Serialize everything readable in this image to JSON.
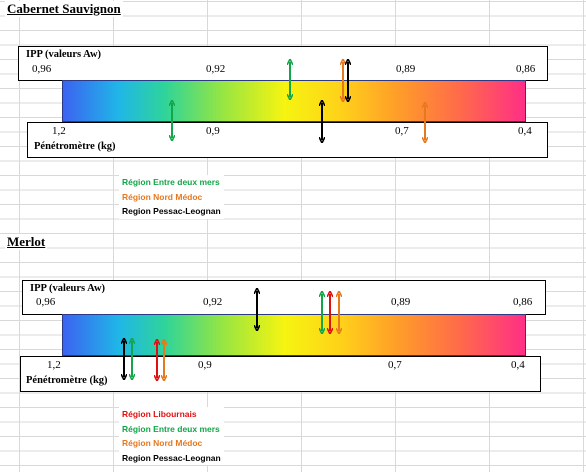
{
  "colors": {
    "green": "#13a54a",
    "orange": "#e6781e",
    "black": "#000000",
    "red": "#e01010"
  },
  "cabernet": {
    "title": "Cabernet Sauvignon",
    "ipp_label": "IPP (valeurs Aw)",
    "ipp_ticks": [
      "0,96",
      "0,92",
      "0,89",
      "0,86"
    ],
    "pen_label": "Pénétromètre (kg)",
    "pen_ticks": [
      "1,2",
      "0,9",
      "0,7",
      "0,4"
    ],
    "legend": [
      {
        "label": "Région Entre deux mers",
        "color": "green"
      },
      {
        "label": "Région Nord Médoc",
        "color": "orange"
      },
      {
        "label": "Region Pessac-Leognan",
        "color": "black"
      }
    ]
  },
  "merlot": {
    "title": "Merlot",
    "ipp_label": "IPP (valeurs Aw)",
    "ipp_ticks": [
      "0,96",
      "0,92",
      "0,89",
      "0,86"
    ],
    "pen_label": "Pénétromètre (kg)",
    "pen_ticks": [
      "1,2",
      "0,9",
      "0,7",
      "0,4"
    ],
    "legend": [
      {
        "label": "Région Libournais",
        "color": "red"
      },
      {
        "label": "Région Entre deux mers",
        "color": "green"
      },
      {
        "label": "Région Nord Médoc",
        "color": "orange"
      },
      {
        "label": "Region Pessac-Leognan",
        "color": "black"
      }
    ]
  }
}
